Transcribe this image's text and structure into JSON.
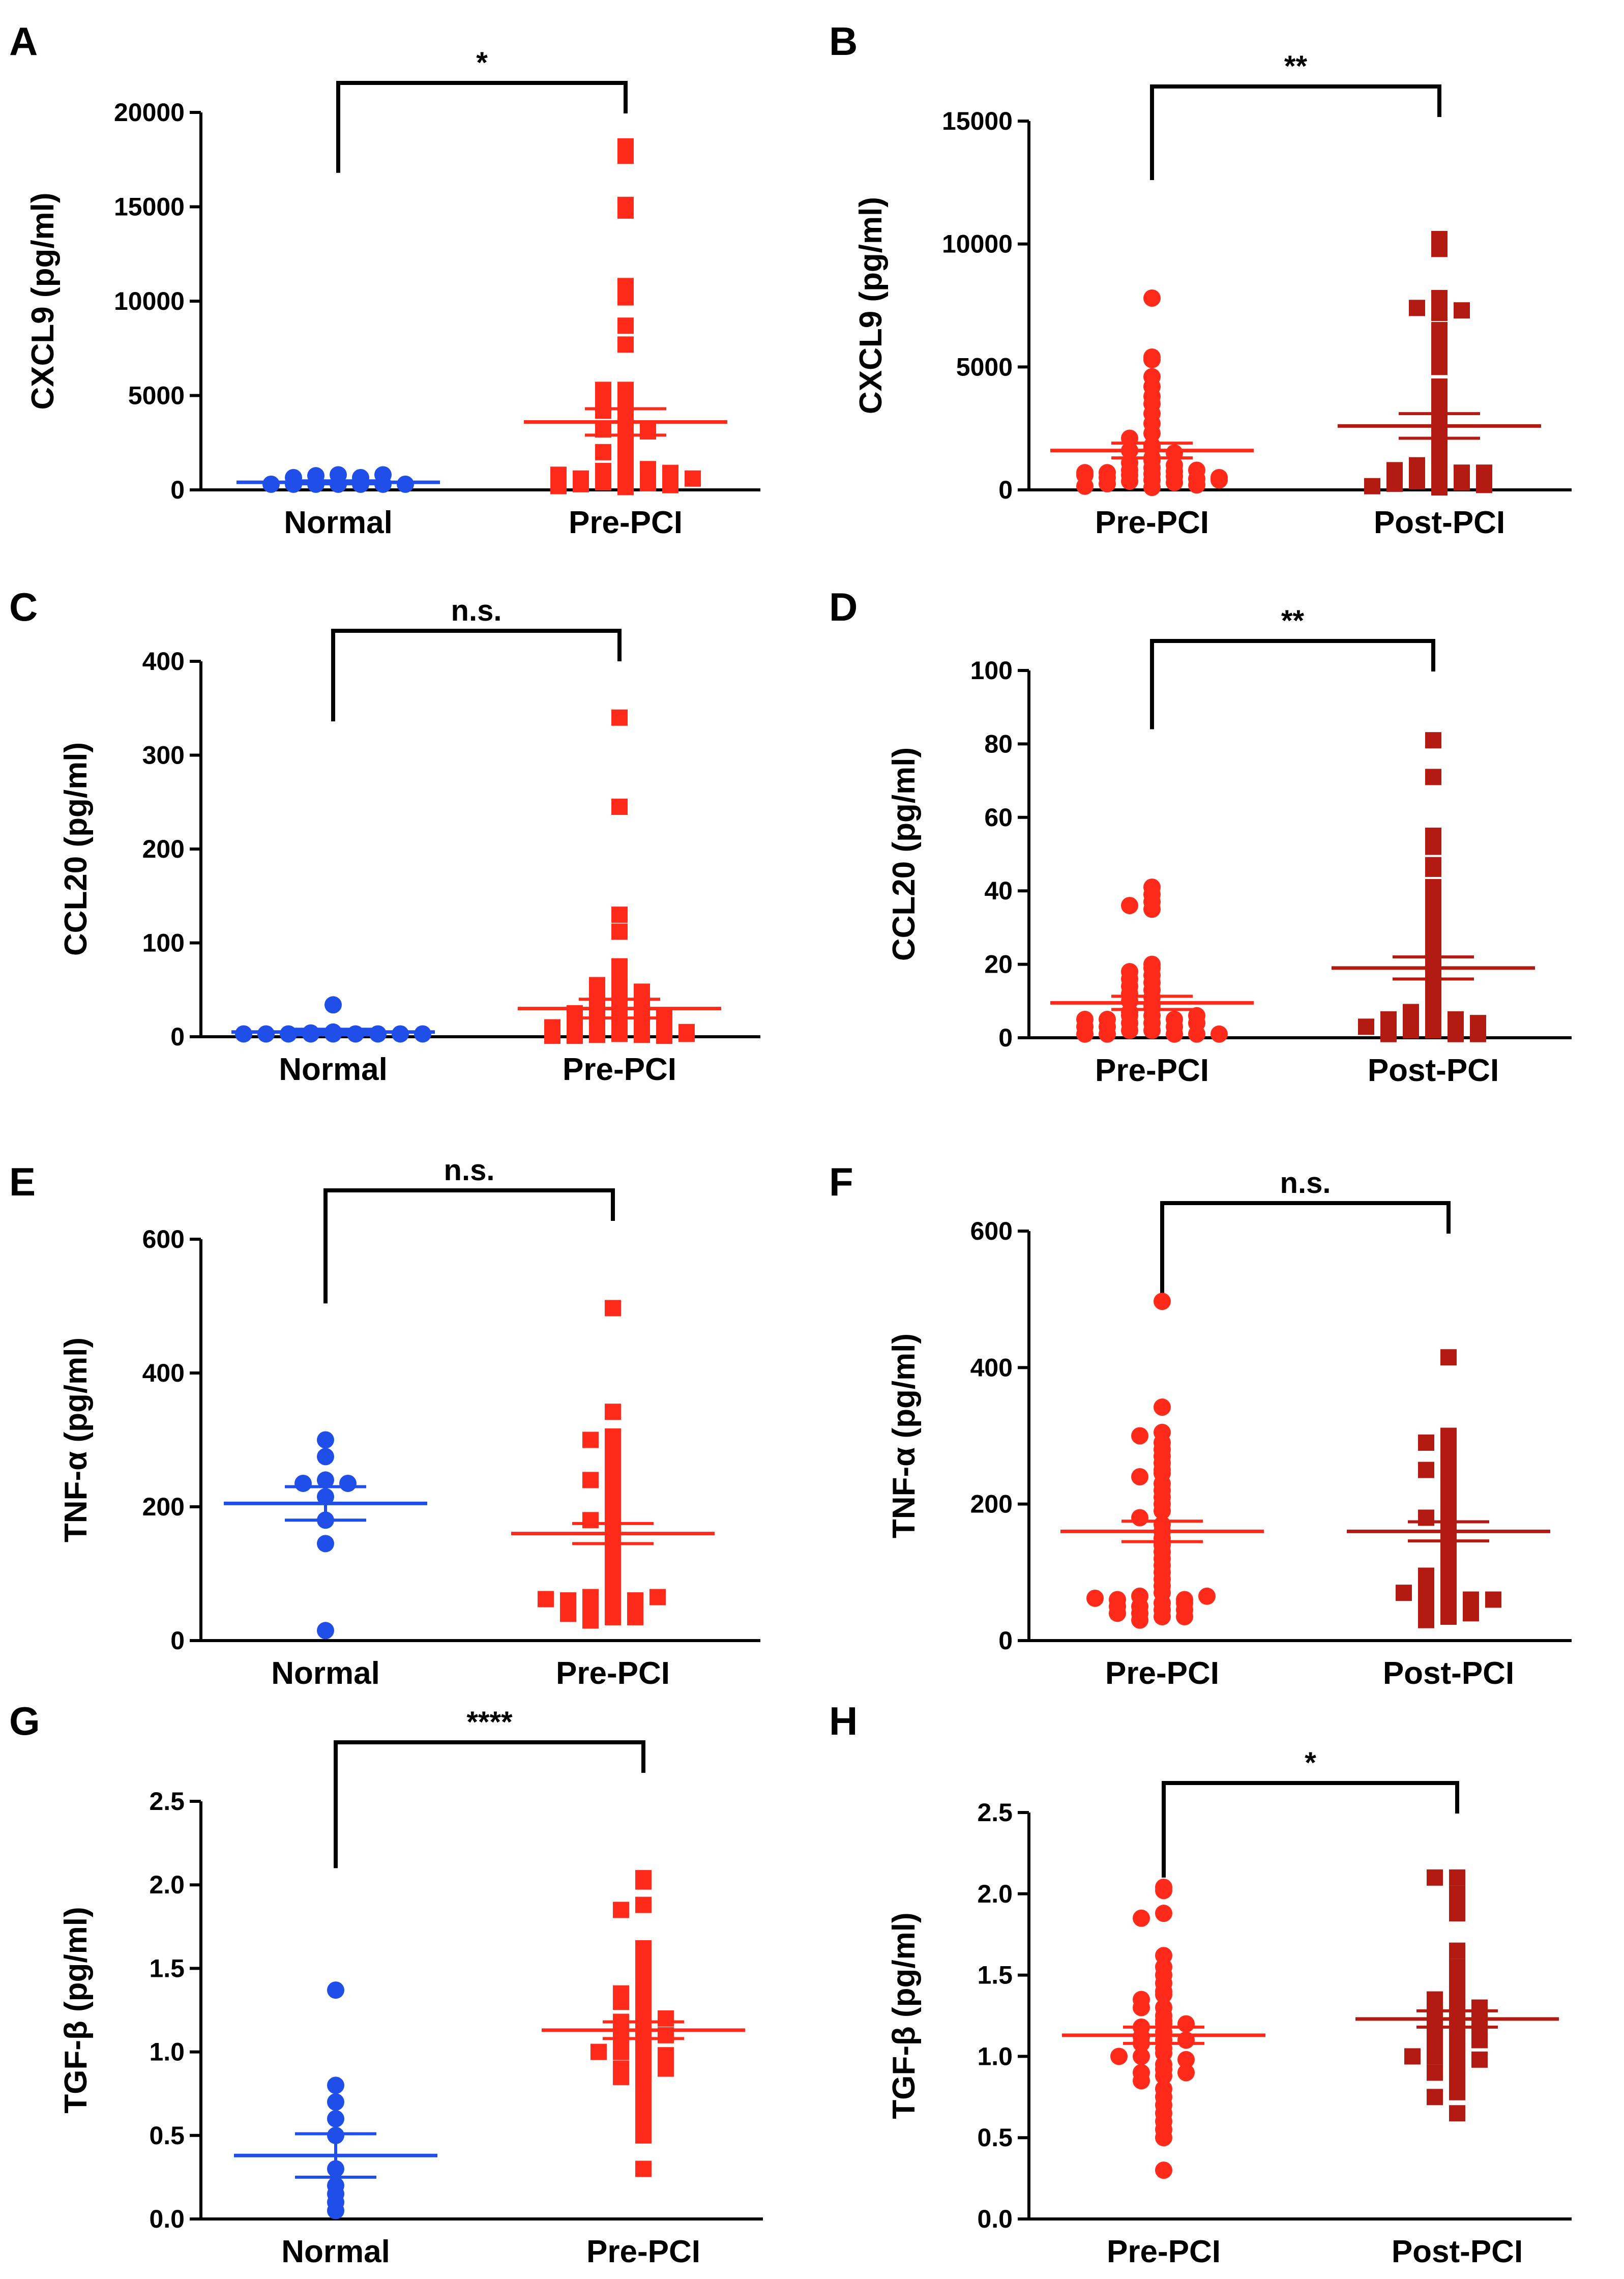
{
  "figure_colors": {
    "normal": "#1f4fe8",
    "pre": "#ff2a1a",
    "post": "#b31a12",
    "axis": "#000000"
  },
  "chart_data": [
    {
      "panel": "A",
      "type": "scatter",
      "ylabel": "CXCL9 (pg/ml)",
      "ylim": [
        0,
        20000
      ],
      "yticks": [
        0,
        5000,
        10000,
        15000,
        20000
      ],
      "tick_labels": [
        "0",
        "5000",
        "10000",
        "15000",
        "20000"
      ],
      "categories": [
        "Normal",
        "Pre-PCI"
      ],
      "significance": "*",
      "series": [
        {
          "name": "Normal",
          "marker": "circle",
          "color": "#1f4fe8",
          "mean": 400,
          "sem": 80,
          "values": [
            800,
            750,
            650,
            300,
            300,
            300,
            300,
            300,
            300,
            300,
            650,
            800
          ]
        },
        {
          "name": "Pre-PCI",
          "marker": "square",
          "color": "#ff2a1a",
          "mean": 3600,
          "sem": 700,
          "values": [
            18200,
            17700,
            15100,
            14800,
            10800,
            10200,
            8700,
            7700,
            5300,
            5300,
            5000,
            4900,
            4700,
            4500,
            4200,
            3900,
            3700,
            3400,
            3200,
            3100,
            2900,
            2600,
            2300,
            2000,
            1800,
            1500,
            1200,
            1000,
            900,
            800,
            700,
            600,
            500,
            400,
            350,
            300,
            250,
            200,
            150,
            1100,
            900,
            800,
            600
          ]
        }
      ]
    },
    {
      "panel": "B",
      "type": "scatter",
      "ylabel": "CXCL9 (pg/ml)",
      "ylim": [
        0,
        15000
      ],
      "yticks": [
        0,
        5000,
        10000,
        15000
      ],
      "tick_labels": [
        "0",
        "5000",
        "10000",
        "15000"
      ],
      "categories": [
        "Pre-PCI",
        "Post-PCI"
      ],
      "significance": "**",
      "series": [
        {
          "name": "Pre-PCI",
          "marker": "circle",
          "color": "#ff2a1a",
          "mean": 1600,
          "sem": 300,
          "values": [
            7800,
            5400,
            5300,
            4600,
            4200,
            3800,
            3500,
            3100,
            2700,
            2300,
            2100,
            1800,
            1700,
            1600,
            1500,
            1300,
            1200,
            1100,
            1000,
            900,
            800,
            750,
            700,
            650,
            600,
            550,
            500,
            450,
            400,
            350,
            300,
            250,
            200,
            150,
            100,
            800,
            700,
            600,
            500,
            400
          ]
        },
        {
          "name": "Post-PCI",
          "marker": "square",
          "color": "#b31a12",
          "mean": 2600,
          "sem": 500,
          "values": [
            10200,
            9800,
            7800,
            7500,
            7400,
            7300,
            7200,
            6500,
            6000,
            5500,
            5000,
            4200,
            3800,
            3400,
            3000,
            2600,
            2400,
            2100,
            1900,
            1600,
            1400,
            1200,
            1000,
            900,
            800,
            700,
            600,
            500,
            400,
            350,
            300,
            250,
            200,
            150,
            100,
            800,
            700,
            600,
            500
          ]
        }
      ]
    },
    {
      "panel": "C",
      "type": "scatter",
      "ylabel": "CCL20 (pg/ml)",
      "ylim": [
        0,
        400
      ],
      "yticks": [
        0,
        100,
        200,
        300,
        400
      ],
      "tick_labels": [
        "0",
        "100",
        "200",
        "300",
        "400"
      ],
      "categories": [
        "Normal",
        "Pre-PCI"
      ],
      "significance": "n.s.",
      "series": [
        {
          "name": "Normal",
          "marker": "circle",
          "color": "#1f4fe8",
          "mean": 5,
          "sem": 3,
          "values": [
            34,
            5,
            4,
            3,
            3,
            3,
            3,
            3,
            3,
            3,
            3,
            3
          ]
        },
        {
          "name": "Pre-PCI",
          "marker": "square",
          "color": "#ff2a1a",
          "mean": 30,
          "sem": 10,
          "values": [
            340,
            245,
            130,
            112,
            75,
            60,
            55,
            52,
            50,
            48,
            45,
            42,
            40,
            38,
            35,
            33,
            30,
            28,
            25,
            22,
            20,
            18,
            15,
            12,
            10,
            8,
            6,
            5,
            4,
            3,
            2,
            2,
            1,
            1,
            1,
            30,
            25,
            20,
            15,
            10,
            5,
            3
          ]
        }
      ]
    },
    {
      "panel": "D",
      "type": "scatter",
      "ylabel": "CCL20 (pg/ml)",
      "ylim": [
        0,
        100
      ],
      "yticks": [
        0,
        20,
        40,
        60,
        80,
        100
      ],
      "tick_labels": [
        "0",
        "20",
        "40",
        "60",
        "80",
        "100"
      ],
      "categories": [
        "Pre-PCI",
        "Post-PCI"
      ],
      "significance": "**",
      "series": [
        {
          "name": "Pre-PCI",
          "marker": "circle",
          "color": "#ff2a1a",
          "mean": 9.5,
          "sem": 1.8,
          "values": [
            41,
            39,
            37,
            36,
            35,
            20,
            19,
            18,
            17,
            16,
            15,
            14,
            13,
            12,
            11,
            10,
            9,
            8,
            7,
            6,
            6,
            5,
            5,
            4,
            4,
            3,
            3,
            2,
            2,
            1,
            1,
            1,
            1,
            1,
            6,
            5,
            4,
            3
          ]
        },
        {
          "name": "Post-PCI",
          "marker": "square",
          "color": "#b31a12",
          "mean": 19,
          "sem": 3,
          "values": [
            81,
            71,
            55,
            52,
            47,
            46,
            41,
            37,
            35,
            31,
            29,
            27,
            25,
            23,
            21,
            19,
            17,
            15,
            13,
            11,
            9,
            8,
            7,
            6,
            5,
            5,
            4,
            4,
            3,
            3,
            2,
            2,
            1,
            1,
            1,
            5,
            4,
            3
          ]
        }
      ]
    },
    {
      "panel": "E",
      "type": "scatter",
      "ylabel": "TNF-α (pg/ml)",
      "ylim": [
        0,
        600
      ],
      "yticks": [
        0,
        200,
        400,
        600
      ],
      "tick_labels": [
        "0",
        "200",
        "400",
        "600"
      ],
      "categories": [
        "Normal",
        "Pre-PCI"
      ],
      "significance": "n.s.",
      "series": [
        {
          "name": "Normal",
          "marker": "circle",
          "color": "#1f4fe8",
          "mean": 205,
          "sem": 25,
          "values": [
            300,
            275,
            240,
            235,
            235,
            215,
            180,
            145,
            15
          ]
        },
        {
          "name": "Pre-PCI",
          "marker": "square",
          "color": "#ff2a1a",
          "mean": 160,
          "sem": 15,
          "values": [
            497,
            342,
            305,
            300,
            290,
            280,
            270,
            260,
            250,
            245,
            240,
            230,
            220,
            210,
            200,
            190,
            180,
            170,
            160,
            150,
            140,
            130,
            120,
            110,
            100,
            90,
            80,
            70,
            65,
            60,
            55,
            50,
            45,
            40,
            35,
            30,
            60,
            55,
            50,
            45,
            40,
            35,
            65,
            62
          ]
        }
      ]
    },
    {
      "panel": "F",
      "type": "scatter",
      "ylabel": "TNF-α (pg/ml)",
      "ylim": [
        0,
        600
      ],
      "yticks": [
        0,
        200,
        400,
        600
      ],
      "tick_labels": [
        "0",
        "200",
        "400",
        "600"
      ],
      "categories": [
        "Pre-PCI",
        "Post-PCI"
      ],
      "significance": "n.s.",
      "series": [
        {
          "name": "Pre-PCI",
          "marker": "circle",
          "color": "#ff2a1a",
          "mean": 160,
          "sem": 15,
          "values": [
            497,
            342,
            305,
            300,
            290,
            280,
            270,
            260,
            250,
            245,
            240,
            230,
            220,
            210,
            200,
            190,
            180,
            170,
            160,
            150,
            140,
            130,
            120,
            110,
            100,
            90,
            80,
            70,
            65,
            60,
            55,
            50,
            45,
            40,
            35,
            30,
            60,
            55,
            50,
            45,
            40,
            35,
            65,
            62
          ]
        },
        {
          "name": "Post-PCI",
          "marker": "square",
          "color": "#b31a12",
          "mean": 160,
          "sem": 14,
          "values": [
            415,
            300,
            295,
            290,
            280,
            270,
            260,
            255,
            250,
            240,
            230,
            220,
            210,
            200,
            190,
            180,
            170,
            160,
            150,
            140,
            130,
            120,
            110,
            100,
            95,
            90,
            85,
            80,
            75,
            70,
            65,
            60,
            55,
            50,
            45,
            40,
            35,
            30,
            70,
            60,
            50,
            40
          ]
        }
      ]
    },
    {
      "panel": "G",
      "type": "scatter",
      "ylabel": "TGF-β (pg/ml)",
      "ylim": [
        0,
        2.5
      ],
      "yticks": [
        0,
        0.5,
        1,
        1.5,
        2,
        2.5
      ],
      "tick_labels": [
        "0.0",
        "0.5",
        "1.0",
        "1.5",
        "2.0",
        "2.5"
      ],
      "categories": [
        "Normal",
        "Pre-PCI"
      ],
      "significance": "****",
      "series": [
        {
          "name": "Normal",
          "marker": "circle",
          "color": "#1f4fe8",
          "mean": 0.38,
          "sem": 0.13,
          "values": [
            1.37,
            0.8,
            0.7,
            0.6,
            0.5,
            0.3,
            0.2,
            0.15,
            0.1,
            0.05
          ]
        },
        {
          "name": "Pre-PCI",
          "marker": "square",
          "color": "#ff2a1a",
          "mean": 1.13,
          "sem": 0.05,
          "values": [
            2.04,
            2.02,
            1.88,
            1.85,
            1.62,
            1.55,
            1.5,
            1.45,
            1.4,
            1.38,
            1.35,
            1.3,
            1.25,
            1.22,
            1.2,
            1.18,
            1.15,
            1.12,
            1.1,
            1.08,
            1.05,
            1.02,
            1.0,
            0.98,
            0.95,
            0.92,
            0.9,
            0.88,
            0.85,
            0.8,
            0.75,
            0.7,
            0.65,
            0.6,
            0.55,
            0.5,
            0.3,
            1.1,
            1.0,
            1.2,
            1.3,
            0.9
          ]
        }
      ]
    },
    {
      "panel": "H",
      "type": "scatter",
      "ylabel": "TGF-β (pg/ml)",
      "ylim": [
        0,
        2.5
      ],
      "yticks": [
        0,
        0.5,
        1,
        1.5,
        2,
        2.5
      ],
      "tick_labels": [
        "0.0",
        "0.5",
        "1.0",
        "1.5",
        "2.0",
        "2.5"
      ],
      "categories": [
        "Pre-PCI",
        "Post-PCI"
      ],
      "significance": "*",
      "series": [
        {
          "name": "Pre-PCI",
          "marker": "circle",
          "color": "#ff2a1a",
          "mean": 1.13,
          "sem": 0.05,
          "values": [
            2.04,
            2.02,
            1.88,
            1.85,
            1.62,
            1.55,
            1.5,
            1.45,
            1.4,
            1.38,
            1.35,
            1.3,
            1.25,
            1.22,
            1.2,
            1.18,
            1.15,
            1.12,
            1.1,
            1.08,
            1.05,
            1.02,
            1.0,
            0.98,
            0.95,
            0.92,
            0.9,
            0.88,
            0.85,
            0.8,
            0.75,
            0.7,
            0.65,
            0.6,
            0.55,
            0.5,
            0.3,
            1.1,
            1.0,
            1.2,
            1.3,
            0.9
          ]
        },
        {
          "name": "Post-PCI",
          "marker": "square",
          "color": "#b31a12",
          "mean": 1.23,
          "sem": 0.05,
          "values": [
            2.1,
            2.1,
            2.0,
            1.95,
            1.88,
            1.65,
            1.55,
            1.5,
            1.45,
            1.4,
            1.35,
            1.32,
            1.3,
            1.28,
            1.25,
            1.22,
            1.2,
            1.18,
            1.15,
            1.12,
            1.1,
            1.08,
            1.05,
            1.02,
            1.0,
            0.98,
            0.95,
            0.92,
            0.9,
            0.85,
            0.8,
            0.78,
            0.75,
            0.65,
            1.25,
            1.2,
            1.3,
            1.35,
            1.1,
            1.0
          ]
        }
      ]
    }
  ]
}
